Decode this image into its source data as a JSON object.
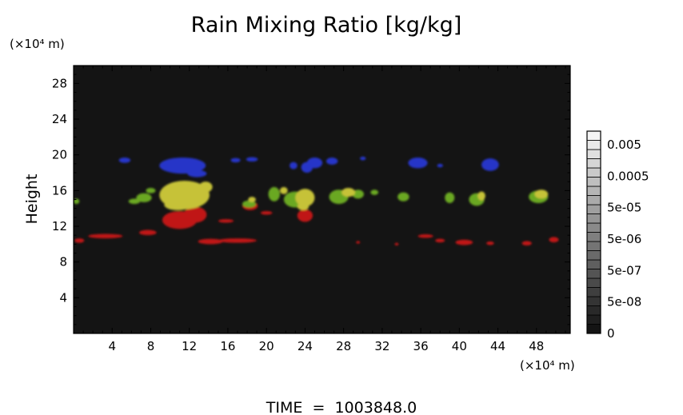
{
  "chart_data": {
    "type": "heatmap",
    "title": "Rain Mixing Ratio [kg/kg]",
    "ylabel": "Height",
    "xlabel": "",
    "x_unit": "(×10⁴ m)",
    "y_unit": "(×10⁴ m)",
    "xlim": [
      0,
      51.5
    ],
    "ylim": [
      0,
      30
    ],
    "x_ticks": [
      "4",
      "8",
      "12",
      "16",
      "20",
      "24",
      "28",
      "32",
      "36",
      "40",
      "44",
      "48"
    ],
    "y_ticks": [
      "4",
      "8",
      "12",
      "16",
      "20",
      "24",
      "28"
    ],
    "background_color": "#141414",
    "colorbar": {
      "labels": [
        "0.005",
        "0.0005",
        "5e-05",
        "5e-06",
        "5e-07",
        "5e-08",
        "0"
      ],
      "steps": 22
    },
    "footer": "TIME  =  1003848.0",
    "regions": [
      {
        "name": "red",
        "color": "#c01818",
        "blobs": [
          {
            "x": 0.6,
            "y": 10.4,
            "rx": 0.5,
            "ry": 0.25
          },
          {
            "x": 3.3,
            "y": 10.9,
            "rx": 1.8,
            "ry": 0.25
          },
          {
            "x": 7.7,
            "y": 11.3,
            "rx": 0.9,
            "ry": 0.3
          },
          {
            "x": 11.0,
            "y": 12.7,
            "rx": 1.8,
            "ry": 1.0
          },
          {
            "x": 12.6,
            "y": 13.3,
            "rx": 1.2,
            "ry": 0.9
          },
          {
            "x": 14.2,
            "y": 10.3,
            "rx": 1.3,
            "ry": 0.3
          },
          {
            "x": 17.0,
            "y": 10.4,
            "rx": 2.0,
            "ry": 0.25
          },
          {
            "x": 15.8,
            "y": 12.6,
            "rx": 0.8,
            "ry": 0.2
          },
          {
            "x": 18.3,
            "y": 14.3,
            "rx": 0.8,
            "ry": 0.5
          },
          {
            "x": 20.0,
            "y": 13.5,
            "rx": 0.6,
            "ry": 0.2
          },
          {
            "x": 24.0,
            "y": 13.2,
            "rx": 0.8,
            "ry": 0.7
          },
          {
            "x": 36.5,
            "y": 10.9,
            "rx": 0.8,
            "ry": 0.2
          },
          {
            "x": 38.0,
            "y": 10.4,
            "rx": 0.5,
            "ry": 0.2
          },
          {
            "x": 40.5,
            "y": 10.2,
            "rx": 0.9,
            "ry": 0.3
          },
          {
            "x": 43.2,
            "y": 10.1,
            "rx": 0.4,
            "ry": 0.2
          },
          {
            "x": 47.0,
            "y": 10.1,
            "rx": 0.5,
            "ry": 0.25
          },
          {
            "x": 49.8,
            "y": 10.5,
            "rx": 0.5,
            "ry": 0.3
          },
          {
            "x": 29.5,
            "y": 10.2,
            "rx": 0.2,
            "ry": 0.15
          },
          {
            "x": 33.5,
            "y": 10.0,
            "rx": 0.2,
            "ry": 0.15
          }
        ]
      },
      {
        "name": "green",
        "color": "#6aa824",
        "blobs": [
          {
            "x": 0.3,
            "y": 14.8,
            "rx": 0.3,
            "ry": 0.3
          },
          {
            "x": 6.3,
            "y": 14.8,
            "rx": 0.6,
            "ry": 0.3
          },
          {
            "x": 7.3,
            "y": 15.2,
            "rx": 0.8,
            "ry": 0.5
          },
          {
            "x": 18.2,
            "y": 14.5,
            "rx": 0.7,
            "ry": 0.4
          },
          {
            "x": 20.8,
            "y": 15.6,
            "rx": 0.6,
            "ry": 0.8
          },
          {
            "x": 23.0,
            "y": 15.0,
            "rx": 1.2,
            "ry": 0.9
          },
          {
            "x": 27.5,
            "y": 15.3,
            "rx": 1.0,
            "ry": 0.8
          },
          {
            "x": 29.5,
            "y": 15.6,
            "rx": 0.6,
            "ry": 0.5
          },
          {
            "x": 31.2,
            "y": 15.8,
            "rx": 0.4,
            "ry": 0.3
          },
          {
            "x": 34.2,
            "y": 15.3,
            "rx": 0.6,
            "ry": 0.5
          },
          {
            "x": 39.0,
            "y": 15.2,
            "rx": 0.5,
            "ry": 0.6
          },
          {
            "x": 41.8,
            "y": 15.0,
            "rx": 0.8,
            "ry": 0.7
          },
          {
            "x": 48.2,
            "y": 15.3,
            "rx": 1.0,
            "ry": 0.7
          },
          {
            "x": 8.0,
            "y": 16.0,
            "rx": 0.5,
            "ry": 0.3
          }
        ]
      },
      {
        "name": "yellow",
        "color": "#c6c238",
        "blobs": [
          {
            "x": 11.5,
            "y": 15.5,
            "rx": 2.6,
            "ry": 1.6
          },
          {
            "x": 10.8,
            "y": 14.4,
            "rx": 1.4,
            "ry": 0.6
          },
          {
            "x": 13.7,
            "y": 16.4,
            "rx": 0.7,
            "ry": 0.6
          },
          {
            "x": 18.5,
            "y": 15.0,
            "rx": 0.4,
            "ry": 0.3
          },
          {
            "x": 24.0,
            "y": 15.2,
            "rx": 1.0,
            "ry": 1.0
          },
          {
            "x": 23.8,
            "y": 14.2,
            "rx": 0.6,
            "ry": 0.4
          },
          {
            "x": 28.5,
            "y": 15.8,
            "rx": 0.7,
            "ry": 0.5
          },
          {
            "x": 21.8,
            "y": 16.0,
            "rx": 0.4,
            "ry": 0.4
          },
          {
            "x": 48.5,
            "y": 15.6,
            "rx": 0.7,
            "ry": 0.5
          },
          {
            "x": 42.3,
            "y": 15.4,
            "rx": 0.4,
            "ry": 0.5
          }
        ]
      },
      {
        "name": "blue",
        "color": "#2636c8",
        "blobs": [
          {
            "x": 5.3,
            "y": 19.4,
            "rx": 0.6,
            "ry": 0.3
          },
          {
            "x": 11.3,
            "y": 18.8,
            "rx": 2.4,
            "ry": 0.9
          },
          {
            "x": 12.8,
            "y": 17.9,
            "rx": 1.0,
            "ry": 0.4
          },
          {
            "x": 16.8,
            "y": 19.4,
            "rx": 0.5,
            "ry": 0.25
          },
          {
            "x": 18.5,
            "y": 19.5,
            "rx": 0.6,
            "ry": 0.25
          },
          {
            "x": 22.8,
            "y": 18.8,
            "rx": 0.4,
            "ry": 0.4
          },
          {
            "x": 24.2,
            "y": 18.6,
            "rx": 0.6,
            "ry": 0.6
          },
          {
            "x": 25.0,
            "y": 19.1,
            "rx": 0.8,
            "ry": 0.6
          },
          {
            "x": 26.8,
            "y": 19.3,
            "rx": 0.6,
            "ry": 0.4
          },
          {
            "x": 35.7,
            "y": 19.1,
            "rx": 1.0,
            "ry": 0.6
          },
          {
            "x": 38.0,
            "y": 18.8,
            "rx": 0.3,
            "ry": 0.2
          },
          {
            "x": 43.2,
            "y": 18.9,
            "rx": 0.9,
            "ry": 0.7
          },
          {
            "x": 30.0,
            "y": 19.6,
            "rx": 0.3,
            "ry": 0.2
          }
        ]
      }
    ]
  }
}
